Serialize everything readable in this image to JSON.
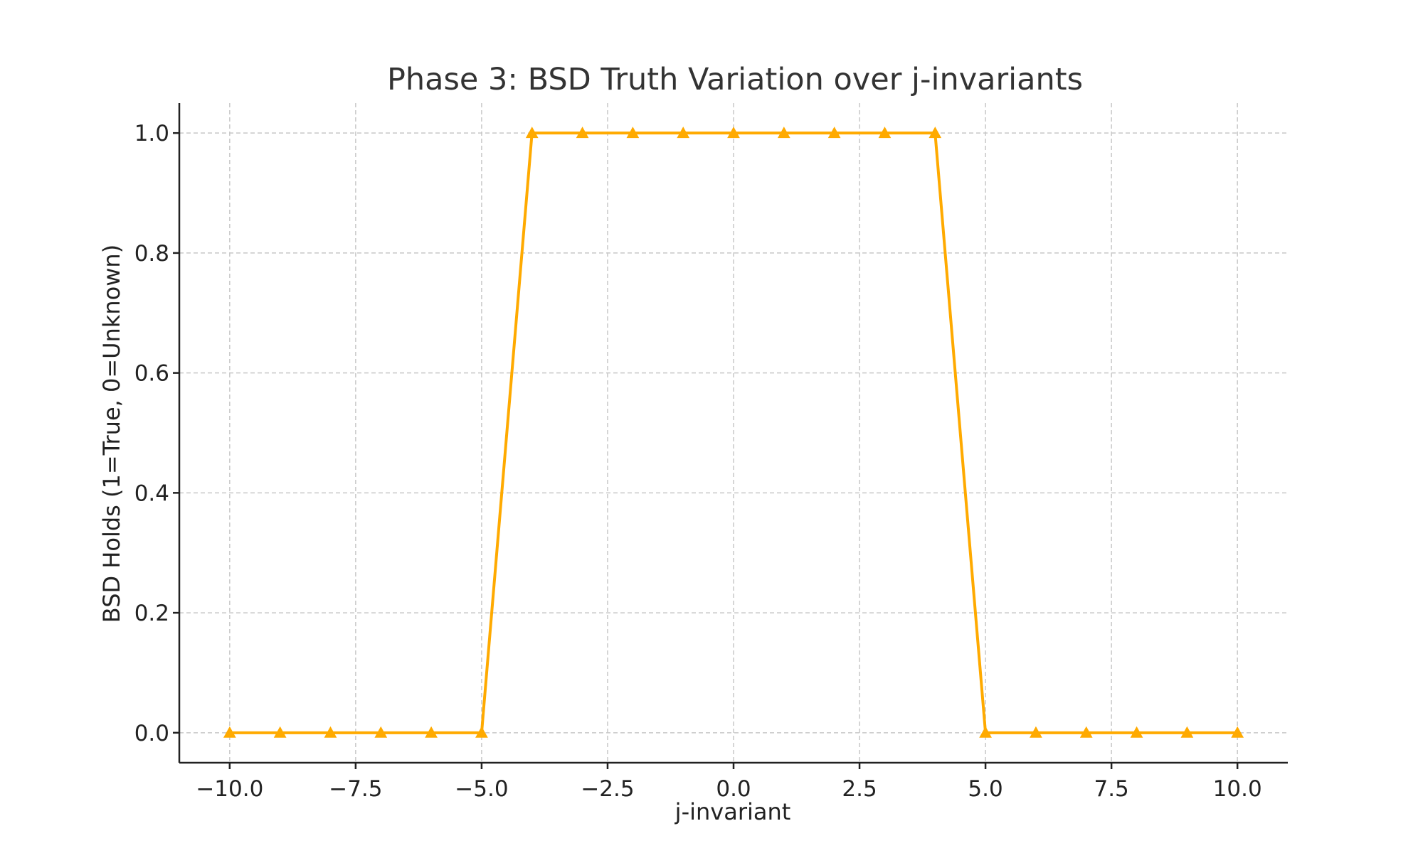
{
  "chart_data": {
    "type": "line",
    "title": "Phase 3: BSD Truth Variation over j-invariants",
    "xlabel": "j-invariant",
    "ylabel": "BSD Holds (1=True, 0=Unknown)",
    "xlim": [
      -11,
      11
    ],
    "ylim": [
      -0.05,
      1.05
    ],
    "x_ticks": [
      -10.0,
      -7.5,
      -5.0,
      -2.5,
      0.0,
      2.5,
      5.0,
      7.5,
      10.0
    ],
    "x_tick_labels": [
      "−10.0",
      "−7.5",
      "−5.0",
      "−2.5",
      "0.0",
      "2.5",
      "5.0",
      "7.5",
      "10.0"
    ],
    "y_ticks": [
      0.0,
      0.2,
      0.4,
      0.6,
      0.8,
      1.0
    ],
    "y_tick_labels": [
      "0.0",
      "0.2",
      "0.4",
      "0.6",
      "0.8",
      "1.0"
    ],
    "grid": true,
    "marker": "triangle",
    "color": "#FFAA00",
    "series": [
      {
        "x": [
          -10,
          -9,
          -8,
          -7,
          -6,
          -5,
          -4,
          -3,
          -2,
          -1,
          0,
          1,
          2,
          3,
          4,
          5,
          6,
          7,
          8,
          9,
          10
        ],
        "values": [
          0,
          0,
          0,
          0,
          0,
          0,
          1,
          1,
          1,
          1,
          1,
          1,
          1,
          1,
          1,
          0,
          0,
          0,
          0,
          0,
          0
        ]
      }
    ]
  }
}
